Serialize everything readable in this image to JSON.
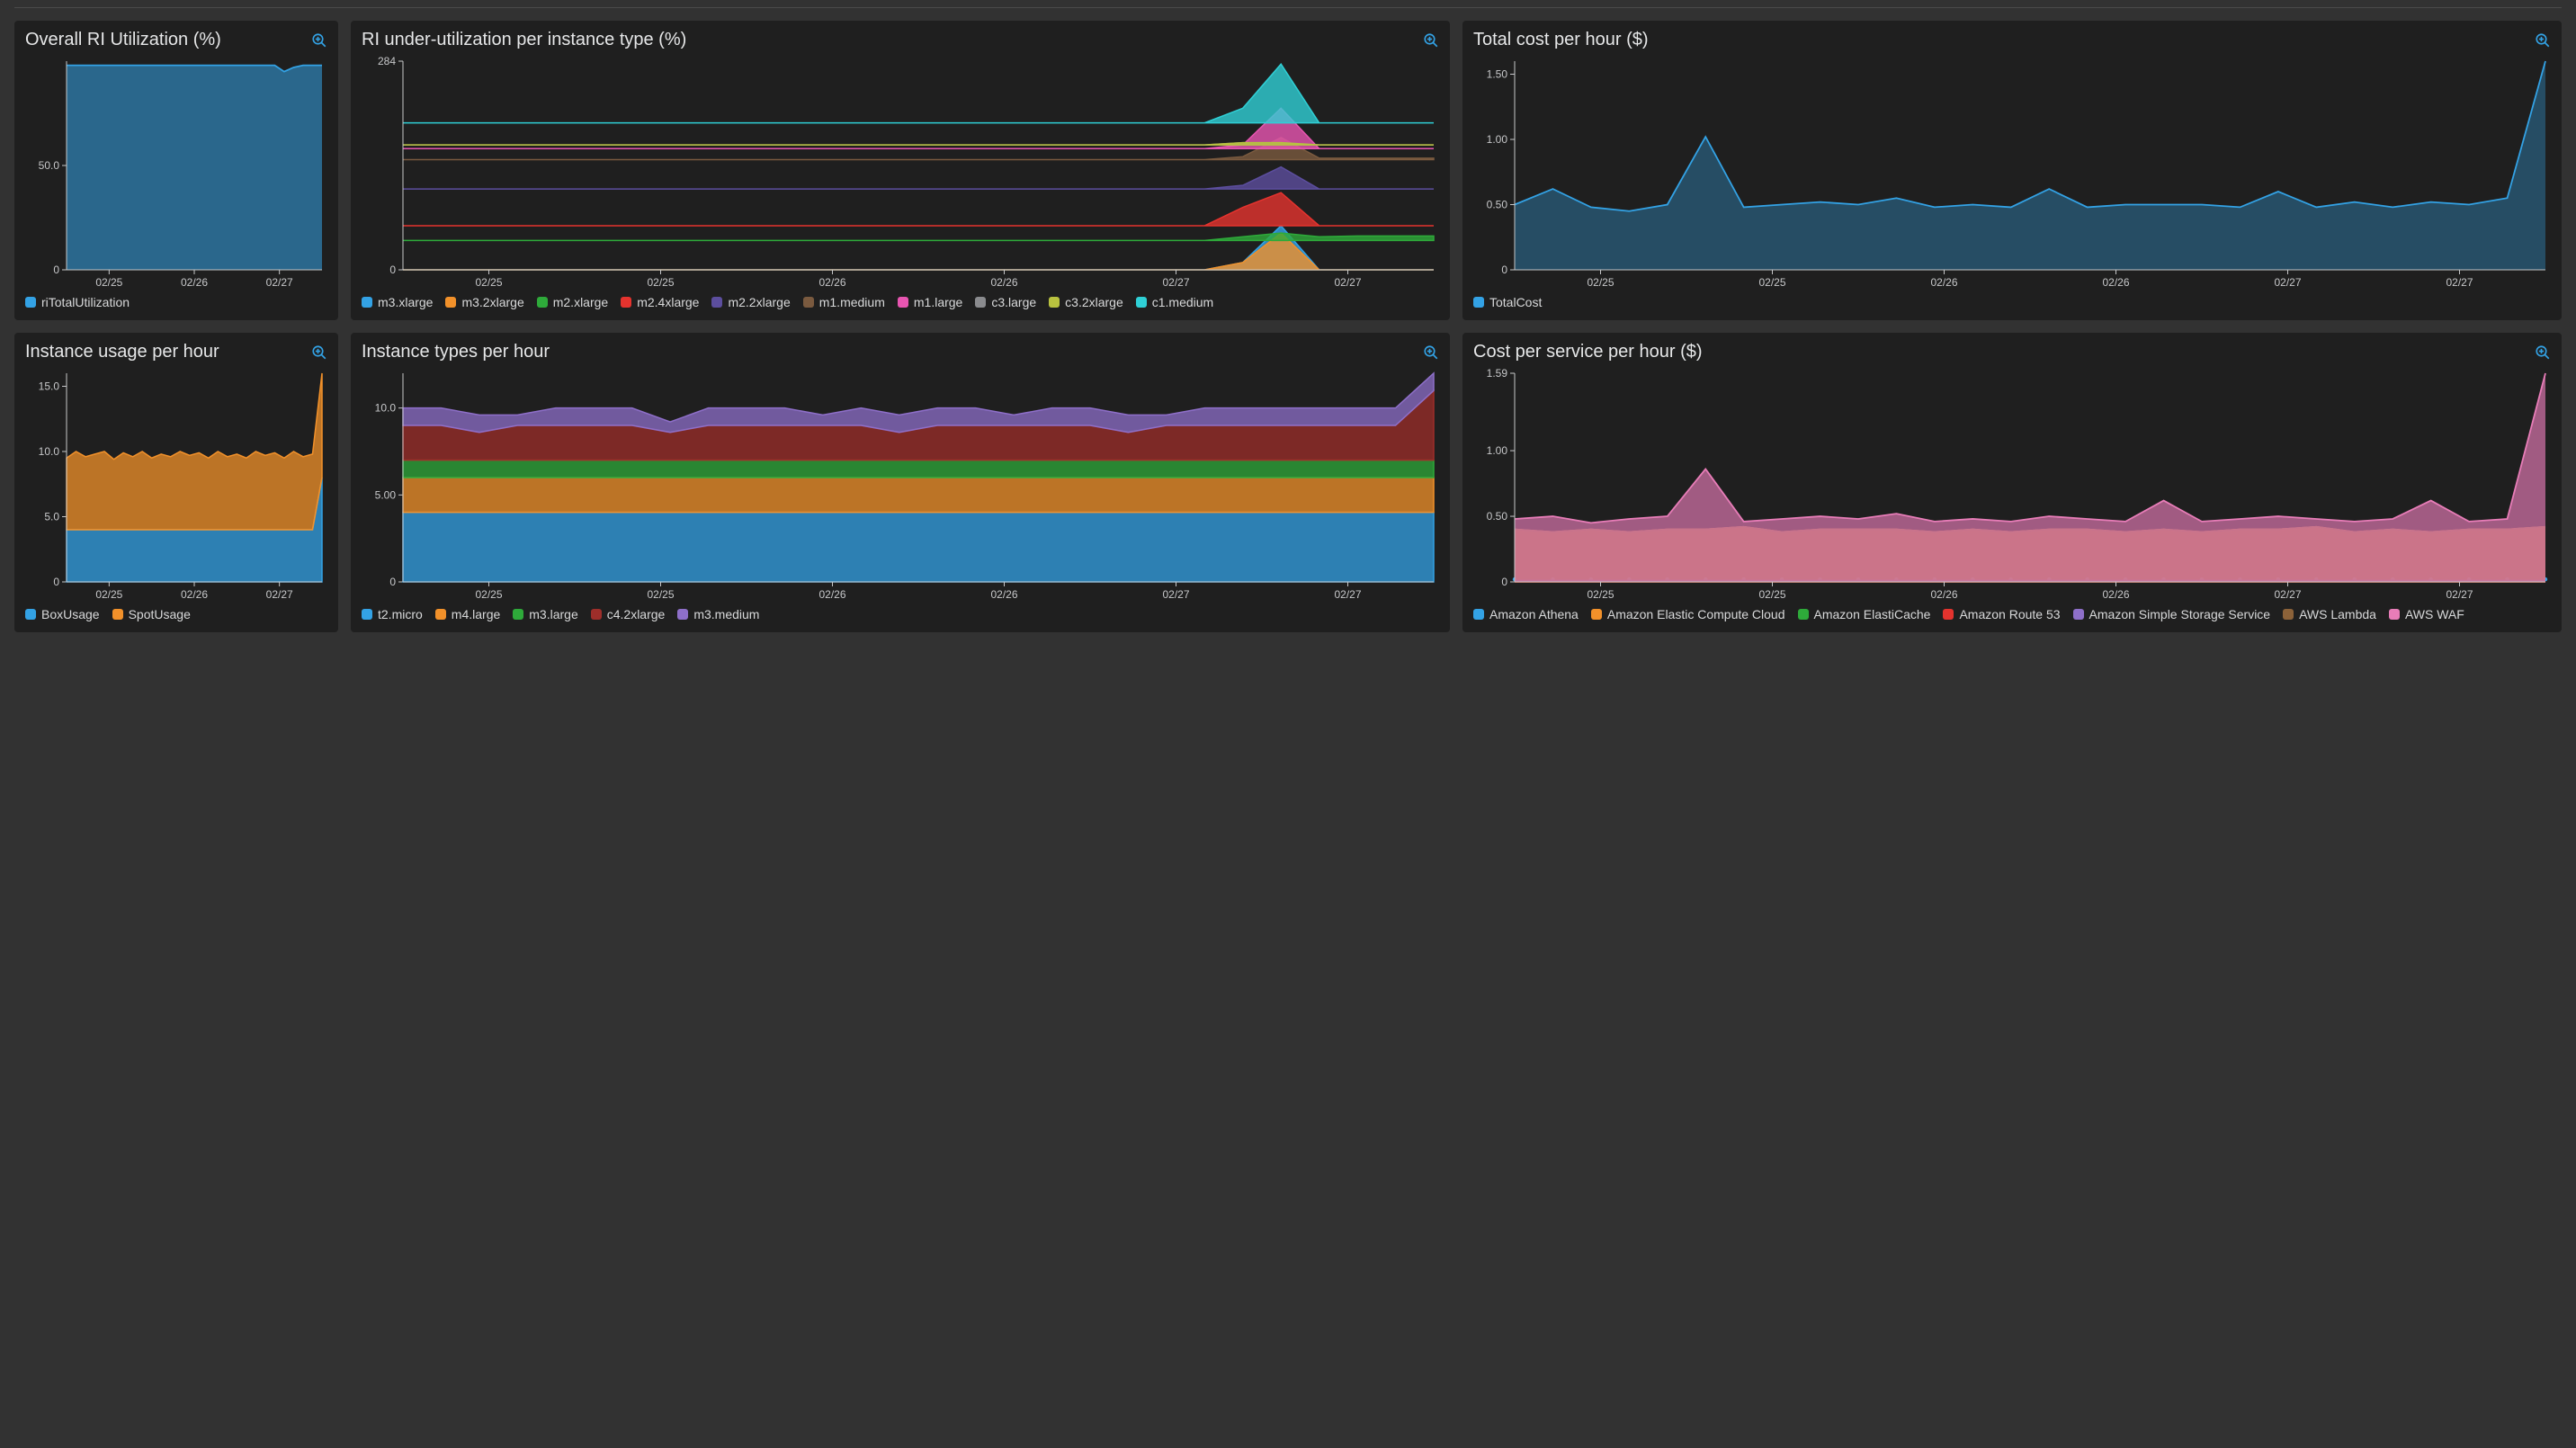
{
  "theme": {
    "page_bg": "#323232",
    "panel_bg": "#1f1f1f",
    "text": "#d8d9da",
    "axis": "#c7c8ca",
    "zoom_icon_color": "#33a2e5"
  },
  "x_axis_common": {
    "ticks": [
      "02/25",
      "02/26",
      "02/27"
    ]
  },
  "x_axis_wide": {
    "ticks": [
      "02/25",
      "02/25",
      "02/26",
      "02/26",
      "02/27",
      "02/27"
    ]
  },
  "panels": {
    "p1": {
      "title": "Overall RI Utilization (%)",
      "type": "area",
      "ylim": [
        0,
        100
      ],
      "yticks": [
        0,
        50.0
      ],
      "ytick_labels": [
        "0",
        "50.0"
      ],
      "fill_opacity": 0.55,
      "series": [
        {
          "name": "riTotalUtilization",
          "color": "#33a2e5",
          "values": [
            98,
            98,
            98,
            98,
            98,
            98,
            98,
            98,
            98,
            98,
            98,
            98,
            98,
            98,
            98,
            98,
            98,
            98,
            98,
            98,
            98,
            98,
            98,
            95,
            97,
            98,
            98,
            98
          ]
        }
      ]
    },
    "p2": {
      "title": "RI under-utilization per instance type (%)",
      "type": "stacked-area",
      "ylim": [
        0,
        284
      ],
      "yticks": [
        0,
        284
      ],
      "ytick_labels": [
        "0",
        "284"
      ],
      "fill_opacity": 0.8,
      "series": [
        {
          "name": "m3.xlarge",
          "color": "#33a2e5",
          "base": 0,
          "values": [
            0,
            0,
            0,
            0,
            0,
            0,
            0,
            0,
            0,
            0,
            0,
            0,
            0,
            0,
            0,
            0,
            0,
            0,
            0,
            0,
            0,
            0,
            10,
            60,
            0,
            0,
            0,
            0
          ]
        },
        {
          "name": "m3.2xlarge",
          "color": "#f2912a",
          "base": 0,
          "values": [
            0,
            0,
            0,
            0,
            0,
            0,
            0,
            0,
            0,
            0,
            0,
            0,
            0,
            0,
            0,
            0,
            0,
            0,
            0,
            0,
            0,
            0,
            10,
            50,
            0,
            0,
            0,
            0
          ]
        },
        {
          "name": "m2.xlarge",
          "color": "#2eaa3a",
          "base": 40,
          "values": [
            0,
            0,
            0,
            0,
            0,
            0,
            0,
            0,
            0,
            0,
            0,
            0,
            0,
            0,
            0,
            0,
            0,
            0,
            0,
            0,
            0,
            0,
            5,
            10,
            5,
            6,
            6,
            6
          ]
        },
        {
          "name": "m2.4xlarge",
          "color": "#e5332e",
          "base": 60,
          "values": [
            0,
            0,
            0,
            0,
            0,
            0,
            0,
            0,
            0,
            0,
            0,
            0,
            0,
            0,
            0,
            0,
            0,
            0,
            0,
            0,
            0,
            0,
            25,
            45,
            0,
            0,
            0,
            0
          ]
        },
        {
          "name": "m2.2xlarge",
          "color": "#5c4e9e",
          "base": 110,
          "values": [
            0,
            0,
            0,
            0,
            0,
            0,
            0,
            0,
            0,
            0,
            0,
            0,
            0,
            0,
            0,
            0,
            0,
            0,
            0,
            0,
            0,
            0,
            5,
            30,
            0,
            0,
            0,
            0
          ]
        },
        {
          "name": "m1.medium",
          "color": "#7a5a3f",
          "base": 150,
          "values": [
            0,
            0,
            0,
            0,
            0,
            0,
            0,
            0,
            0,
            0,
            0,
            0,
            0,
            0,
            0,
            0,
            0,
            0,
            0,
            0,
            0,
            0,
            4,
            30,
            2,
            2,
            2,
            2
          ]
        },
        {
          "name": "m1.large",
          "color": "#e855b1",
          "base": 165,
          "values": [
            0,
            0,
            0,
            0,
            0,
            0,
            0,
            0,
            0,
            0,
            0,
            0,
            0,
            0,
            0,
            0,
            0,
            0,
            0,
            0,
            0,
            0,
            5,
            55,
            0,
            0,
            0,
            0
          ]
        },
        {
          "name": "c3.large",
          "color": "#8a8b8e",
          "base": 170,
          "values": [
            0,
            0,
            0,
            0,
            0,
            0,
            0,
            0,
            0,
            0,
            0,
            0,
            0,
            0,
            0,
            0,
            0,
            0,
            0,
            0,
            0,
            0,
            3,
            3,
            0,
            0,
            0,
            0
          ]
        },
        {
          "name": "c3.2xlarge",
          "color": "#b9c23f",
          "base": 170,
          "values": [
            0,
            0,
            0,
            0,
            0,
            0,
            0,
            0,
            0,
            0,
            0,
            0,
            0,
            0,
            0,
            0,
            0,
            0,
            0,
            0,
            0,
            0,
            3,
            3,
            0,
            0,
            0,
            0
          ]
        },
        {
          "name": "c1.medium",
          "color": "#2fd0d6",
          "base": 200,
          "values": [
            0,
            0,
            0,
            0,
            0,
            0,
            0,
            0,
            0,
            0,
            0,
            0,
            0,
            0,
            0,
            0,
            0,
            0,
            0,
            0,
            0,
            0,
            20,
            80,
            0,
            0,
            0,
            0
          ]
        }
      ]
    },
    "p3": {
      "title": "Total cost per hour ($)",
      "type": "area",
      "ylim": [
        0,
        1.6
      ],
      "yticks": [
        0,
        0.5,
        1.0,
        1.5
      ],
      "ytick_labels": [
        "0",
        "0.50",
        "1.00",
        "1.50"
      ],
      "fill_opacity": 0.35,
      "series": [
        {
          "name": "TotalCost",
          "color": "#33a2e5",
          "values": [
            0.5,
            0.62,
            0.48,
            0.45,
            0.5,
            1.02,
            0.48,
            0.5,
            0.52,
            0.5,
            0.55,
            0.48,
            0.5,
            0.48,
            0.62,
            0.48,
            0.5,
            0.5,
            0.5,
            0.48,
            0.6,
            0.48,
            0.52,
            0.48,
            0.52,
            0.5,
            0.55,
            1.6
          ]
        }
      ]
    },
    "p4": {
      "title": "Instance usage per hour",
      "type": "stacked-area",
      "ylim": [
        0,
        16
      ],
      "yticks": [
        0,
        5.0,
        10.0,
        15.0
      ],
      "ytick_labels": [
        "0",
        "5.0",
        "10.0",
        "15.0"
      ],
      "fill_opacity": 0.75,
      "series": [
        {
          "name": "BoxUsage",
          "color": "#33a2e5",
          "values": [
            4,
            4,
            4,
            4,
            4,
            4,
            4,
            4,
            4,
            4,
            4,
            4,
            4,
            4,
            4,
            4,
            4,
            4,
            4,
            4,
            4,
            4,
            4,
            4,
            4,
            4,
            4,
            8
          ]
        },
        {
          "name": "SpotUsage",
          "color": "#f2912a",
          "values": [
            5.5,
            6,
            5.6,
            5.8,
            6,
            5.4,
            5.9,
            5.6,
            6,
            5.5,
            5.8,
            5.6,
            6,
            5.7,
            5.9,
            5.5,
            6,
            5.6,
            5.8,
            5.5,
            6,
            5.7,
            5.9,
            5.5,
            6,
            5.6,
            5.8,
            8
          ]
        }
      ]
    },
    "p5": {
      "title": "Instance types per hour",
      "type": "stacked-area",
      "ylim": [
        0,
        12
      ],
      "yticks": [
        0,
        5.0,
        10.0
      ],
      "ytick_labels": [
        "0",
        "5.00",
        "10.0"
      ],
      "fill_opacity": 0.75,
      "series": [
        {
          "name": "t2.micro",
          "color": "#33a2e5",
          "values": [
            4,
            4,
            4,
            4,
            4,
            4,
            4,
            4,
            4,
            4,
            4,
            4,
            4,
            4,
            4,
            4,
            4,
            4,
            4,
            4,
            4,
            4,
            4,
            4,
            4,
            4,
            4,
            4
          ]
        },
        {
          "name": "m4.large",
          "color": "#f2912a",
          "values": [
            2,
            2,
            2,
            2,
            2,
            2,
            2,
            2,
            2,
            2,
            2,
            2,
            2,
            2,
            2,
            2,
            2,
            2,
            2,
            2,
            2,
            2,
            2,
            2,
            2,
            2,
            2,
            2
          ]
        },
        {
          "name": "m3.large",
          "color": "#2eaa3a",
          "values": [
            1,
            1,
            1,
            1,
            1,
            1,
            1,
            1,
            1,
            1,
            1,
            1,
            1,
            1,
            1,
            1,
            1,
            1,
            1,
            1,
            1,
            1,
            1,
            1,
            1,
            1,
            1,
            1
          ]
        },
        {
          "name": "c4.2xlarge",
          "color": "#9e2e2a",
          "values": [
            2,
            2,
            1.6,
            2,
            2,
            2,
            2,
            1.6,
            2,
            2,
            2,
            2,
            2,
            1.6,
            2,
            2,
            2,
            2,
            2,
            1.6,
            2,
            2,
            2,
            2,
            2,
            2,
            2,
            4
          ]
        },
        {
          "name": "m3.medium",
          "color": "#8e6fc9",
          "values": [
            1,
            1,
            1,
            0.6,
            1,
            1,
            1,
            0.6,
            1,
            1,
            1,
            0.6,
            1,
            1,
            1,
            1,
            0.6,
            1,
            1,
            1,
            0.6,
            1,
            1,
            1,
            1,
            1,
            1,
            1
          ]
        }
      ]
    },
    "p6": {
      "title": "Cost per service per hour ($)",
      "type": "area-overlay",
      "ylim": [
        0,
        1.59
      ],
      "yticks": [
        0,
        0.5,
        1.0,
        1.59
      ],
      "ytick_labels": [
        "0",
        "0.50",
        "1.00",
        "1.59"
      ],
      "fill_opacity": 0.65,
      "dot_color": "#33a2e5",
      "series": [
        {
          "name": "Amazon Athena",
          "color": "#33a2e5",
          "dotted": true,
          "values": [
            0.02,
            0.02,
            0.02,
            0.02,
            0.02,
            0.02,
            0.02,
            0.02,
            0.02,
            0.02,
            0.02,
            0.02,
            0.02,
            0.02,
            0.02,
            0.02,
            0.02,
            0.02,
            0.02,
            0.02,
            0.02,
            0.02,
            0.02,
            0.02,
            0.02,
            0.02,
            0.02,
            0.02
          ]
        },
        {
          "name": "Amazon Elastic Compute Cloud",
          "color": "#f2912a",
          "values": [
            0.4,
            0.38,
            0.4,
            0.38,
            0.4,
            0.4,
            0.42,
            0.38,
            0.4,
            0.4,
            0.4,
            0.38,
            0.4,
            0.38,
            0.4,
            0.4,
            0.38,
            0.4,
            0.38,
            0.4,
            0.4,
            0.42,
            0.38,
            0.4,
            0.38,
            0.4,
            0.4,
            0.42
          ]
        },
        {
          "name": "Amazon ElastiCache",
          "color": "#2eaa3a",
          "values": [
            0,
            0,
            0,
            0,
            0,
            0,
            0,
            0,
            0,
            0,
            0,
            0,
            0,
            0,
            0,
            0,
            0,
            0,
            0,
            0,
            0,
            0,
            0,
            0,
            0,
            0,
            0,
            0
          ]
        },
        {
          "name": "Amazon Route 53",
          "color": "#e5332e",
          "values": [
            0,
            0,
            0,
            0,
            0,
            0,
            0,
            0,
            0,
            0,
            0,
            0,
            0,
            0,
            0,
            0,
            0,
            0,
            0,
            0,
            0,
            0,
            0,
            0,
            0,
            0,
            0,
            0
          ]
        },
        {
          "name": "Amazon Simple Storage Service",
          "color": "#8e6fc9",
          "values": [
            0.01,
            0.01,
            0.01,
            0.01,
            0.01,
            0.01,
            0.01,
            0.01,
            0.01,
            0.01,
            0.01,
            0.01,
            0.01,
            0.01,
            0.01,
            0.01,
            0.01,
            0.01,
            0.01,
            0.01,
            0.01,
            0.01,
            0.01,
            0.01,
            0.01,
            0.01,
            0.01,
            0.01
          ]
        },
        {
          "name": "AWS Lambda",
          "color": "#8c6239",
          "values": [
            0.4,
            0.38,
            0.4,
            0.38,
            0.4,
            0.4,
            0.42,
            0.38,
            0.4,
            0.4,
            0.4,
            0.38,
            0.4,
            0.38,
            0.4,
            0.4,
            0.38,
            0.4,
            0.38,
            0.4,
            0.4,
            0.42,
            0.38,
            0.4,
            0.38,
            0.4,
            0.4,
            0.42
          ]
        },
        {
          "name": "AWS WAF",
          "color": "#e87db8",
          "values": [
            0.48,
            0.5,
            0.45,
            0.48,
            0.5,
            0.86,
            0.46,
            0.48,
            0.5,
            0.48,
            0.52,
            0.46,
            0.48,
            0.46,
            0.5,
            0.48,
            0.46,
            0.62,
            0.46,
            0.48,
            0.5,
            0.48,
            0.46,
            0.48,
            0.62,
            0.46,
            0.48,
            1.59
          ]
        }
      ]
    }
  }
}
